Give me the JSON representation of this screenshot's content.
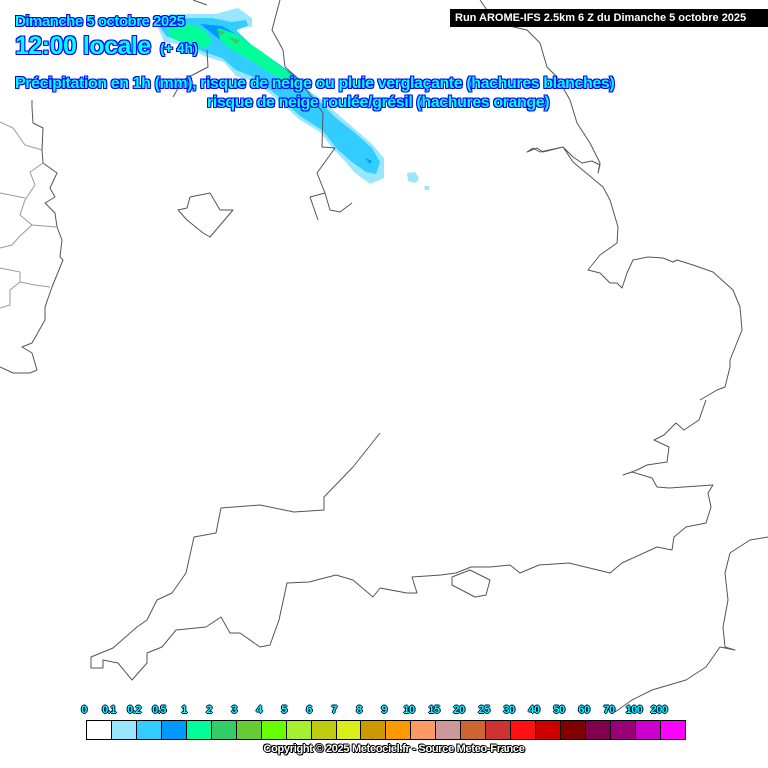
{
  "header": {
    "date": "Dimanche 5 octobre 2025",
    "time": "12:00 locale",
    "lead": "(+ 4h)",
    "description_line1": "Précipitation en 1h (mm), risque de neige ou pluie verglaçante (hachures blanches)",
    "description_line2": "risque de neige roulée/grésil (hachures orange)",
    "run": "Run AROME-IFS 2.5km 6 Z du Dimanche 5 octobre 2025"
  },
  "legend": {
    "labels": [
      "0",
      "0.1",
      "0.2",
      "0.5",
      "1",
      "2",
      "3",
      "4",
      "5",
      "6",
      "7",
      "8",
      "9",
      "10",
      "15",
      "20",
      "25",
      "30",
      "40",
      "50",
      "60",
      "70",
      "100",
      "200"
    ],
    "colors": [
      "#ffffff",
      "#99e6ff",
      "#33ccff",
      "#0099ff",
      "#00ff99",
      "#33cc66",
      "#66cc33",
      "#66ff00",
      "#a6f032",
      "#bfcc12",
      "#d9ef17",
      "#cc9900",
      "#ff9900",
      "#ff9966",
      "#cc9999",
      "#cc6633",
      "#cc3333",
      "#ff1111",
      "#cc0000",
      "#800000",
      "#800050",
      "#990077",
      "#cc00cc",
      "#ff00ff"
    ]
  },
  "copyright": "Copyright © 2025 Meteociel.fr - Source Meteo-France"
}
